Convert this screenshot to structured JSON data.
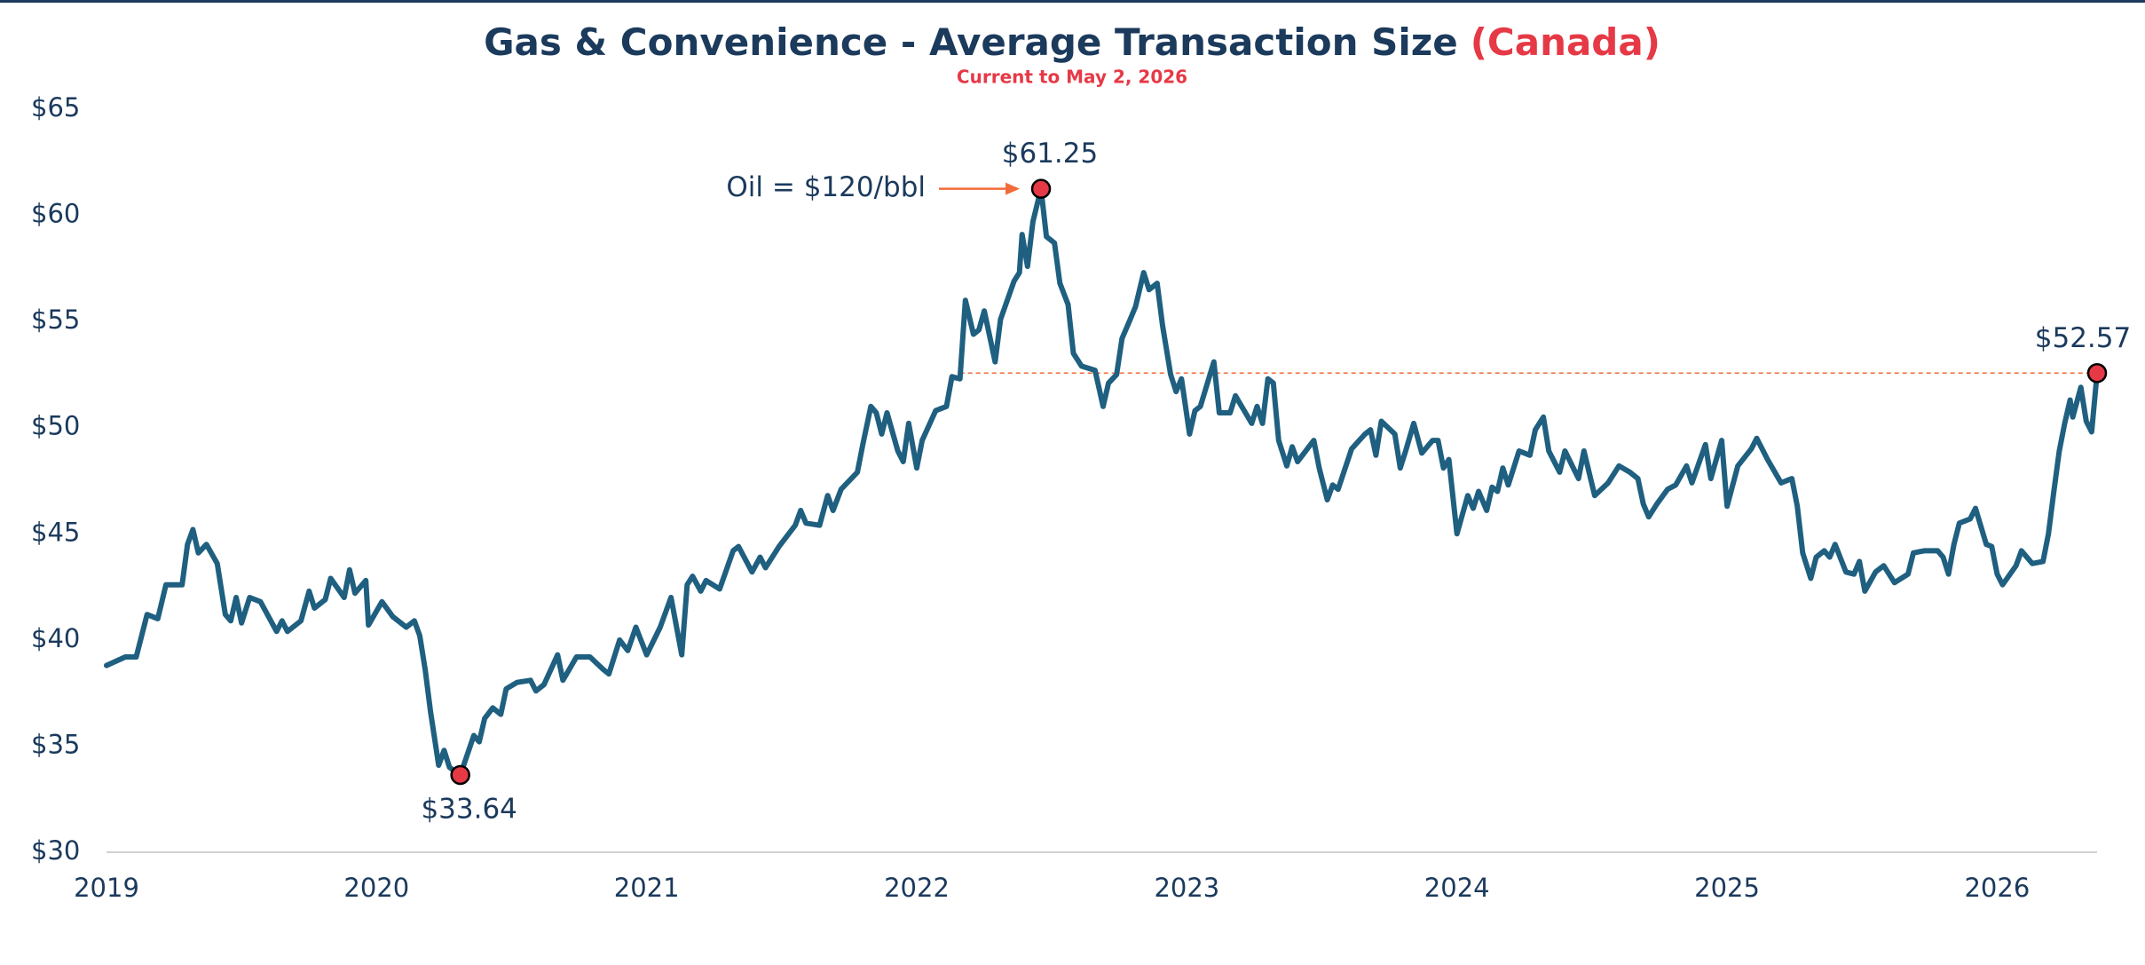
{
  "chart_data": {
    "type": "line",
    "title": "Gas & Convenience - Average Transaction Size",
    "title_highlight": "(Canada)",
    "subtitle": "Current to May 2, 2026",
    "color": "#1f5f80",
    "highlight_color": "#e63946",
    "xlim": [
      2019,
      2026.37
    ],
    "xticks": [
      2019,
      2020,
      2021,
      2022,
      2023,
      2024,
      2025,
      2026
    ],
    "ylim": [
      30,
      65
    ],
    "yticks": [
      {
        "value": 30,
        "label": "$30"
      },
      {
        "value": 35,
        "label": "$35"
      },
      {
        "value": 40,
        "label": "$40"
      },
      {
        "value": 45,
        "label": "$45"
      },
      {
        "value": 50,
        "label": "$50"
      },
      {
        "value": 55,
        "label": "$55"
      },
      {
        "value": 60,
        "label": "$60"
      },
      {
        "value": 65,
        "label": "$65"
      }
    ],
    "grid": false,
    "x": [
      2019.0,
      2019.07,
      2019.11,
      2019.15,
      2019.19,
      2019.22,
      2019.28,
      2019.3,
      2019.32,
      2019.34,
      2019.37,
      2019.41,
      2019.44,
      2019.46,
      2019.48,
      2019.5,
      2019.53,
      2019.57,
      2019.63,
      2019.65,
      2019.67,
      2019.72,
      2019.75,
      2019.77,
      2019.81,
      2019.83,
      2019.88,
      2019.9,
      2019.92,
      2019.96,
      2019.97,
      2020.02,
      2020.06,
      2020.11,
      2020.14,
      2020.16,
      2020.18,
      2020.2,
      2020.23,
      2020.25,
      2020.27,
      2020.31,
      2020.36,
      2020.38,
      2020.4,
      2020.43,
      2020.46,
      2020.48,
      2020.52,
      2020.57,
      2020.59,
      2020.62,
      2020.67,
      2020.69,
      2020.74,
      2020.79,
      2020.84,
      2020.86,
      2020.9,
      2020.93,
      2020.96,
      2021.0,
      2021.05,
      2021.09,
      2021.13,
      2021.15,
      2021.17,
      2021.2,
      2021.22,
      2021.27,
      2021.32,
      2021.34,
      2021.39,
      2021.42,
      2021.44,
      2021.49,
      2021.55,
      2021.57,
      2021.59,
      2021.64,
      2021.67,
      2021.69,
      2021.72,
      2021.78,
      2021.8,
      2021.83,
      2021.85,
      2021.87,
      2021.89,
      2021.93,
      2021.95,
      2021.97,
      2022.0,
      2022.02,
      2022.07,
      2022.11,
      2022.13,
      2022.16,
      2022.18,
      2022.21,
      2022.23,
      2022.25,
      2022.29,
      2022.31,
      2022.36,
      2022.38,
      2022.39,
      2022.41,
      2022.43,
      2022.46,
      2022.48,
      2022.51,
      2022.53,
      2022.56,
      2022.58,
      2022.61,
      2022.66,
      2022.69,
      2022.71,
      2022.74,
      2022.76,
      2022.79,
      2022.81,
      2022.84,
      2022.86,
      2022.89,
      2022.91,
      2022.94,
      2022.96,
      2022.98,
      2023.01,
      2023.03,
      2023.05,
      2023.1,
      2023.12,
      2023.16,
      2023.18,
      2023.24,
      2023.26,
      2023.28,
      2023.3,
      2023.32,
      2023.34,
      2023.37,
      2023.39,
      2023.41,
      2023.47,
      2023.49,
      2023.52,
      2023.54,
      2023.56,
      2023.61,
      2023.66,
      2023.68,
      2023.7,
      2023.72,
      2023.77,
      2023.79,
      2023.81,
      2023.84,
      2023.87,
      2023.91,
      2023.93,
      2023.95,
      2023.97,
      2024.0,
      2024.04,
      2024.06,
      2024.08,
      2024.11,
      2024.13,
      2024.15,
      2024.17,
      2024.19,
      2024.23,
      2024.27,
      2024.29,
      2024.32,
      2024.34,
      2024.38,
      2024.4,
      2024.45,
      2024.47,
      2024.51,
      2024.56,
      2024.6,
      2024.64,
      2024.67,
      2024.69,
      2024.71,
      2024.74,
      2024.78,
      2024.81,
      2024.85,
      2024.87,
      2024.92,
      2024.94,
      2024.98,
      2025.0,
      2025.04,
      2025.09,
      2025.11,
      2025.15,
      2025.2,
      2025.24,
      2025.26,
      2025.28,
      2025.31,
      2025.33,
      2025.36,
      2025.38,
      2025.4,
      2025.44,
      2025.47,
      2025.49,
      2025.51,
      2025.55,
      2025.58,
      2025.62,
      2025.67,
      2025.69,
      2025.73,
      2025.78,
      2025.8,
      2025.82,
      2025.84,
      2025.86,
      2025.9,
      2025.92,
      2025.96,
      2025.98,
      2026.0,
      2026.02,
      2026.07,
      2026.09,
      2026.13,
      2026.17,
      2026.19,
      2026.21,
      2026.23,
      2026.25,
      2026.27,
      2026.28,
      2026.31,
      2026.33,
      2026.35,
      2026.37
    ],
    "values": [
      38.8,
      39.2,
      39.2,
      41.2,
      41.0,
      42.6,
      42.6,
      44.5,
      45.2,
      44.1,
      44.5,
      43.6,
      41.2,
      40.9,
      42.0,
      40.8,
      42.0,
      41.8,
      40.4,
      40.9,
      40.4,
      40.9,
      42.3,
      41.5,
      41.9,
      42.9,
      42.0,
      43.3,
      42.2,
      42.8,
      40.7,
      41.8,
      41.1,
      40.6,
      40.9,
      40.2,
      38.6,
      36.6,
      34.1,
      34.8,
      34.0,
      33.64,
      35.5,
      35.2,
      36.3,
      36.8,
      36.5,
      37.7,
      38.0,
      38.1,
      37.6,
      37.9,
      39.3,
      38.1,
      39.2,
      39.2,
      38.6,
      38.4,
      40.0,
      39.5,
      40.6,
      39.3,
      40.6,
      42.0,
      39.3,
      42.6,
      43.0,
      42.3,
      42.8,
      42.4,
      44.2,
      44.4,
      43.2,
      43.9,
      43.4,
      44.4,
      45.4,
      46.1,
      45.5,
      45.4,
      46.8,
      46.1,
      47.1,
      47.9,
      49.2,
      51.0,
      50.7,
      49.7,
      50.7,
      48.9,
      48.4,
      50.2,
      48.1,
      49.4,
      50.8,
      51.0,
      52.4,
      52.3,
      56.0,
      54.4,
      54.6,
      55.5,
      53.1,
      55.1,
      56.9,
      57.3,
      59.1,
      57.6,
      59.7,
      61.25,
      59.0,
      58.7,
      56.8,
      55.8,
      53.5,
      52.9,
      52.7,
      51.0,
      52.1,
      52.5,
      54.2,
      55.1,
      55.7,
      57.3,
      56.5,
      56.8,
      54.8,
      52.5,
      51.7,
      52.3,
      49.7,
      50.8,
      51.0,
      53.1,
      50.7,
      50.7,
      51.5,
      50.2,
      51.0,
      50.2,
      52.3,
      52.1,
      49.4,
      48.2,
      49.1,
      48.4,
      49.4,
      48.1,
      46.6,
      47.3,
      47.1,
      49.0,
      49.7,
      49.9,
      48.7,
      50.3,
      49.7,
      48.1,
      48.9,
      50.2,
      48.8,
      49.4,
      49.4,
      48.1,
      48.5,
      45.0,
      46.8,
      46.2,
      47.0,
      46.1,
      47.2,
      47.0,
      48.1,
      47.3,
      48.9,
      48.7,
      49.9,
      50.5,
      48.9,
      47.9,
      48.9,
      47.6,
      48.9,
      46.8,
      47.4,
      48.2,
      47.9,
      47.6,
      46.4,
      45.8,
      46.4,
      47.1,
      47.3,
      48.2,
      47.4,
      49.2,
      47.6,
      49.4,
      46.3,
      48.2,
      49.0,
      49.5,
      48.5,
      47.4,
      47.6,
      46.3,
      44.1,
      42.9,
      43.9,
      44.2,
      43.9,
      44.5,
      43.2,
      43.1,
      43.7,
      42.3,
      43.2,
      43.5,
      42.7,
      43.1,
      44.1,
      44.2,
      44.2,
      43.9,
      43.1,
      44.5,
      45.5,
      45.7,
      46.2,
      44.5,
      44.4,
      43.1,
      42.6,
      43.5,
      44.2,
      43.6,
      43.7,
      45.0,
      47.0,
      48.9,
      50.2,
      51.3,
      50.5,
      51.9,
      50.3,
      49.8,
      52.57
    ],
    "highlights": [
      {
        "x": 2020.31,
        "y": 33.64,
        "label": "$33.64",
        "label_position": "below"
      },
      {
        "x": 2022.46,
        "y": 61.25,
        "label": "$61.25",
        "label_position": "above"
      },
      {
        "x": 2026.37,
        "y": 52.57,
        "label": "$52.57",
        "label_position": "above"
      }
    ],
    "reference_line": {
      "value": 52.57,
      "x_start": 2022.16,
      "color": "#f26b3a",
      "style": "dashed"
    },
    "annotation": {
      "text": "Oil = $120/bbl",
      "color": "#f26b3a"
    }
  }
}
